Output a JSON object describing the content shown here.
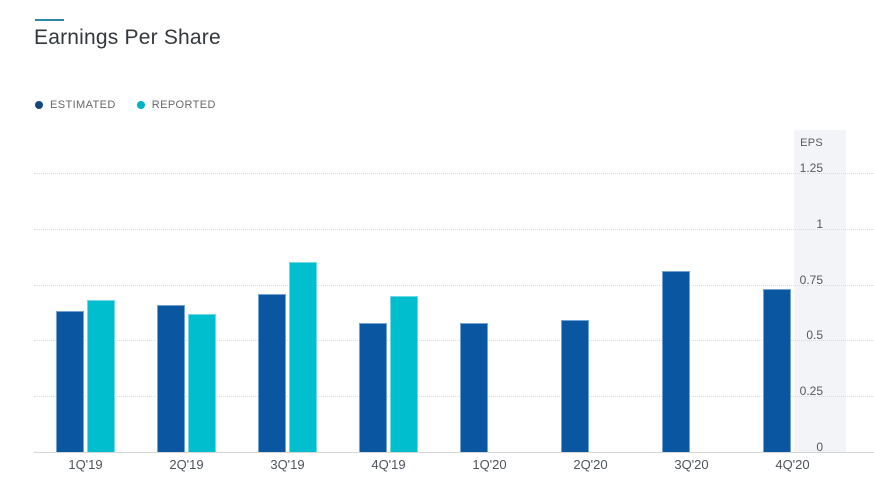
{
  "header": {
    "title": "Earnings Per Share",
    "accent_color": "#2D87A6"
  },
  "legend": [
    {
      "label": "ESTIMATED",
      "dot_color": "#15477D"
    },
    {
      "label": "REPORTED",
      "dot_color": "#00B2C8"
    }
  ],
  "chart_data": {
    "type": "bar",
    "title": "Earnings Per Share",
    "categories": [
      "1Q'19",
      "2Q'19",
      "3Q'19",
      "4Q'19",
      "1Q'20",
      "2Q'20",
      "3Q'20",
      "4Q'20"
    ],
    "series": [
      {
        "name": "ESTIMATED",
        "color": "#0B56A0",
        "values": [
          0.63,
          0.66,
          0.71,
          0.58,
          0.58,
          0.59,
          0.81,
          0.73
        ]
      },
      {
        "name": "REPORTED",
        "color": "#00BECE",
        "values": [
          0.68,
          0.62,
          0.85,
          0.7,
          null,
          null,
          null,
          null
        ]
      }
    ],
    "axis": {
      "label": "EPS",
      "side": "right",
      "ticks": [
        0,
        0.25,
        0.5,
        0.75,
        1,
        1.25
      ],
      "ylim": [
        0,
        1.375
      ],
      "grid": "dotted"
    },
    "legend_position": "top-left"
  }
}
